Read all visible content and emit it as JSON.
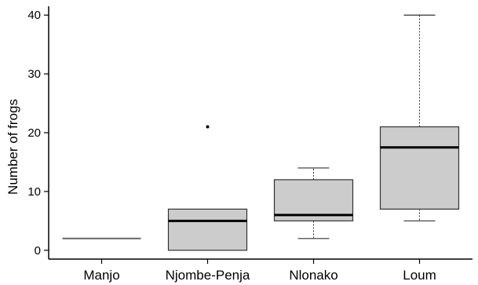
{
  "chart_data": {
    "type": "boxplot",
    "title": "",
    "xlabel": "",
    "ylabel": "Number of frogs",
    "categories": [
      "Manjo",
      "Njombe-Penja",
      "Nlonako",
      "Loum"
    ],
    "ylim": [
      -1.5,
      41.5
    ],
    "yticks": [
      0,
      10,
      20,
      30,
      40
    ],
    "grid": false,
    "boxes": [
      {
        "category": "Manjo",
        "min": 2,
        "q1": 2,
        "median": 2,
        "q3": 2,
        "max": 2,
        "outliers": []
      },
      {
        "category": "Njombe-Penja",
        "min": 0,
        "q1": 0,
        "median": 5,
        "q3": 7,
        "max": 7,
        "outliers": [
          21
        ]
      },
      {
        "category": "Nlonako",
        "min": 2,
        "q1": 5,
        "median": 6,
        "q3": 12,
        "max": 14,
        "outliers": []
      },
      {
        "category": "Loum",
        "min": 5,
        "q1": 7,
        "median": 17.5,
        "q3": 21,
        "max": 40,
        "outliers": []
      }
    ],
    "colors": {
      "box_fill": "#cccccc",
      "stroke": "#333333",
      "median": "#000000"
    }
  }
}
